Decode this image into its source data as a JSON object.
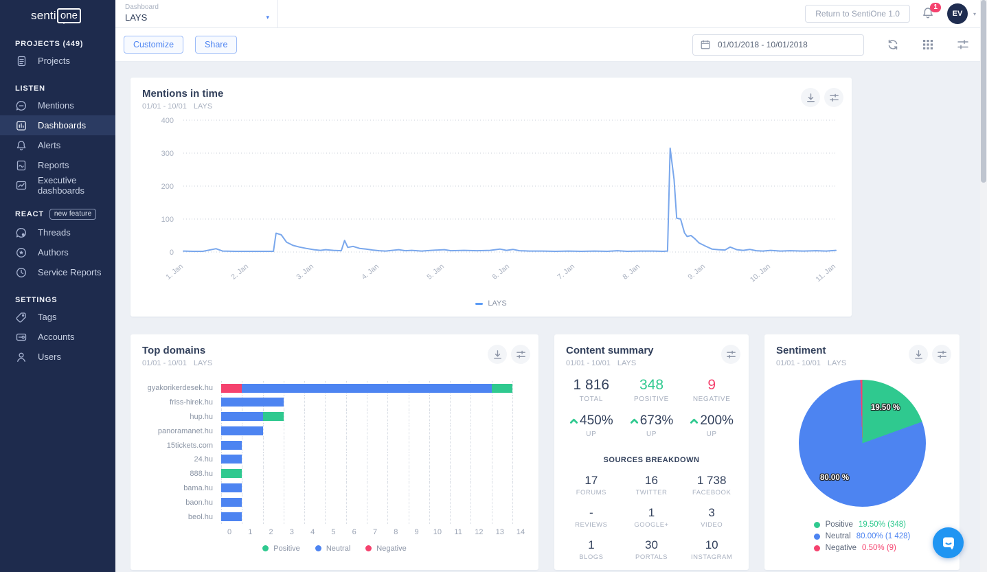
{
  "colors": {
    "positive": "#2fc98f",
    "neutral": "#4d84f1",
    "negative": "#f5426e",
    "line_blue": "#79a7ec",
    "sidebar_navy": "#1e2b4d",
    "accent_blue": "#4d84f1"
  },
  "sidebar": {
    "logo": {
      "part1": "senti",
      "part2": "one"
    },
    "sections": [
      {
        "title": "PROJECTS (449)",
        "badge": null,
        "items": [
          {
            "label": "Projects",
            "icon": "projects",
            "active": false
          }
        ]
      },
      {
        "title": "LISTEN",
        "badge": null,
        "items": [
          {
            "label": "Mentions",
            "icon": "mentions",
            "active": false
          },
          {
            "label": "Dashboards",
            "icon": "dashboards",
            "active": true
          },
          {
            "label": "Alerts",
            "icon": "alerts",
            "active": false
          },
          {
            "label": "Reports",
            "icon": "reports",
            "active": false
          },
          {
            "label": "Executive dashboards",
            "icon": "executive-dashboards",
            "active": false
          }
        ]
      },
      {
        "title": "REACT",
        "badge": "new feature",
        "items": [
          {
            "label": "Threads",
            "icon": "threads",
            "active": false
          },
          {
            "label": "Authors",
            "icon": "authors",
            "active": false
          },
          {
            "label": "Service Reports",
            "icon": "service-reports",
            "active": false
          }
        ]
      },
      {
        "title": "SETTINGS",
        "badge": null,
        "items": [
          {
            "label": "Tags",
            "icon": "tags",
            "active": false
          },
          {
            "label": "Accounts",
            "icon": "accounts",
            "active": false
          },
          {
            "label": "Users",
            "icon": "users",
            "active": false
          }
        ]
      }
    ]
  },
  "header": {
    "dashboard_label": "Dashboard",
    "dashboard_value": "LAYS",
    "return_button": "Return to SentiOne 1.0",
    "notification_count": "1",
    "avatar_initials": "EV"
  },
  "toolbar": {
    "customize_label": "Customize",
    "share_label": "Share",
    "date_range": "01/01/2018 - 10/01/2018"
  },
  "cards": {
    "mentions": {
      "title": "Mentions in time",
      "subtitle_date": "01/01 - 10/01",
      "subtitle_project": "LAYS",
      "legend": "LAYS"
    },
    "top_domains": {
      "title": "Top domains",
      "subtitle_date": "01/01 - 10/01",
      "subtitle_project": "LAYS"
    },
    "content_summary": {
      "title": "Content summary",
      "subtitle_date": "01/01 - 10/01",
      "subtitle_project": "LAYS",
      "top_stats": [
        {
          "value": "1 816",
          "label": "TOTAL",
          "color": "dark"
        },
        {
          "value": "348",
          "label": "POSITIVE",
          "color": "green"
        },
        {
          "value": "9",
          "label": "NEGATIVE",
          "color": "pink"
        }
      ],
      "trend_stats": [
        {
          "value": "450%",
          "label": "UP"
        },
        {
          "value": "673%",
          "label": "UP"
        },
        {
          "value": "200%",
          "label": "UP"
        }
      ],
      "sources_title": "SOURCES BREAKDOWN",
      "sources": [
        {
          "value": "17",
          "label": "FORUMS"
        },
        {
          "value": "16",
          "label": "TWITTER"
        },
        {
          "value": "1 738",
          "label": "FACEBOOK"
        },
        {
          "value": "-",
          "label": "REVIEWS"
        },
        {
          "value": "1",
          "label": "GOOGLE+"
        },
        {
          "value": "3",
          "label": "VIDEO"
        },
        {
          "value": "1",
          "label": "BLOGS"
        },
        {
          "value": "30",
          "label": "PORTALS"
        },
        {
          "value": "10",
          "label": "INSTAGRAM"
        }
      ]
    },
    "sentiment": {
      "title": "Sentiment",
      "subtitle_date": "01/01 - 10/01",
      "subtitle_project": "LAYS"
    }
  },
  "chart_data": [
    {
      "type": "line",
      "title": "Mentions in time",
      "series_name": "LAYS",
      "x_labels": [
        "1. Jan",
        "2. Jan",
        "3. Jan",
        "4. Jan",
        "5. Jan",
        "6. Jan",
        "7. Jan",
        "8. Jan",
        "9. Jan",
        "10. Jan",
        "11. Jan"
      ],
      "x_range": [
        1,
        11
      ],
      "ylim": [
        0,
        400
      ],
      "y_ticks": [
        400,
        300,
        200,
        100,
        0
      ],
      "grid": "dotted-horizontal",
      "legend_position": "bottom",
      "points": [
        [
          1,
          3
        ],
        [
          1.15,
          2
        ],
        [
          1.3,
          2
        ],
        [
          1.5,
          10
        ],
        [
          1.6,
          3
        ],
        [
          1.8,
          2
        ],
        [
          2,
          2
        ],
        [
          2.2,
          2
        ],
        [
          2.38,
          2
        ],
        [
          2.42,
          57
        ],
        [
          2.5,
          52
        ],
        [
          2.58,
          30
        ],
        [
          2.68,
          20
        ],
        [
          2.78,
          15
        ],
        [
          2.88,
          11
        ],
        [
          3,
          7
        ],
        [
          3.1,
          5
        ],
        [
          3.18,
          7
        ],
        [
          3.3,
          5
        ],
        [
          3.42,
          4
        ],
        [
          3.47,
          35
        ],
        [
          3.52,
          14
        ],
        [
          3.6,
          17
        ],
        [
          3.7,
          11
        ],
        [
          3.8,
          9
        ],
        [
          3.9,
          6
        ],
        [
          4,
          4
        ],
        [
          4.1,
          3
        ],
        [
          4.3,
          7
        ],
        [
          4.4,
          4
        ],
        [
          4.5,
          5
        ],
        [
          4.65,
          3
        ],
        [
          4.8,
          5
        ],
        [
          5,
          7
        ],
        [
          5.1,
          4
        ],
        [
          5.3,
          5
        ],
        [
          5.5,
          4
        ],
        [
          5.7,
          5
        ],
        [
          5.85,
          9
        ],
        [
          5.95,
          5
        ],
        [
          6.05,
          8
        ],
        [
          6.15,
          4
        ],
        [
          6.3,
          3
        ],
        [
          6.5,
          3
        ],
        [
          6.7,
          2
        ],
        [
          6.9,
          3
        ],
        [
          7.1,
          2
        ],
        [
          7.3,
          3
        ],
        [
          7.5,
          2
        ],
        [
          7.65,
          4
        ],
        [
          7.8,
          2
        ],
        [
          8,
          3
        ],
        [
          8.2,
          3
        ],
        [
          8.35,
          2
        ],
        [
          8.42,
          3
        ],
        [
          8.46,
          315
        ],
        [
          8.52,
          220
        ],
        [
          8.56,
          103
        ],
        [
          8.62,
          100
        ],
        [
          8.68,
          58
        ],
        [
          8.72,
          47
        ],
        [
          8.78,
          50
        ],
        [
          8.84,
          40
        ],
        [
          8.9,
          28
        ],
        [
          9,
          18
        ],
        [
          9.1,
          9
        ],
        [
          9.2,
          7
        ],
        [
          9.3,
          6
        ],
        [
          9.38,
          15
        ],
        [
          9.48,
          7
        ],
        [
          9.58,
          5
        ],
        [
          9.68,
          8
        ],
        [
          9.78,
          4
        ],
        [
          9.88,
          3
        ],
        [
          10,
          5
        ],
        [
          10.15,
          3
        ],
        [
          10.3,
          4
        ],
        [
          10.5,
          3
        ],
        [
          10.7,
          4
        ],
        [
          10.85,
          3
        ],
        [
          11,
          5
        ]
      ]
    },
    {
      "type": "bar",
      "title": "Top domains",
      "orientation": "horizontal-stacked",
      "categories": [
        "gyakorikerdesek.hu",
        "friss-hirek.hu",
        "hup.hu",
        "panoramanet.hu",
        "15tickets.com",
        "24.hu",
        "888.hu",
        "bama.hu",
        "baon.hu",
        "beol.hu"
      ],
      "series": [
        {
          "name": "Positive",
          "color_key": "positive",
          "values": [
            1,
            0,
            1,
            0,
            0,
            0,
            1,
            0,
            0,
            0
          ]
        },
        {
          "name": "Neutral",
          "color_key": "neutral",
          "values": [
            12,
            3,
            2,
            2,
            1,
            1,
            0,
            1,
            1,
            1
          ]
        },
        {
          "name": "Negative",
          "color_key": "negative",
          "values": [
            1,
            0,
            0,
            0,
            0,
            0,
            0,
            0,
            0,
            0
          ]
        }
      ],
      "stack_order": [
        "Negative",
        "Neutral",
        "Positive"
      ],
      "xlim": [
        0,
        14
      ],
      "x_ticks": [
        0,
        1,
        2,
        3,
        4,
        5,
        6,
        7,
        8,
        9,
        10,
        11,
        12,
        13,
        14
      ],
      "grid": "dotted-vertical",
      "legend_position": "bottom"
    },
    {
      "type": "pie",
      "title": "Sentiment",
      "slices": [
        {
          "name": "Positive",
          "percent": 19.5,
          "count": "348",
          "color_key": "positive",
          "legend_value": "19.50% (348)"
        },
        {
          "name": "Neutral",
          "percent": 80.0,
          "count": "1 428",
          "color_key": "neutral",
          "legend_value": "80.00% (1 428)"
        },
        {
          "name": "Negative",
          "percent": 0.5,
          "count": "9",
          "color_key": "negative",
          "legend_value": "0.50% (9)"
        }
      ],
      "labels_on_pie": [
        {
          "text": "19.50 %",
          "slice": "Positive"
        },
        {
          "text": "80.00 %",
          "slice": "Neutral"
        }
      ],
      "legend_position": "bottom"
    }
  ]
}
